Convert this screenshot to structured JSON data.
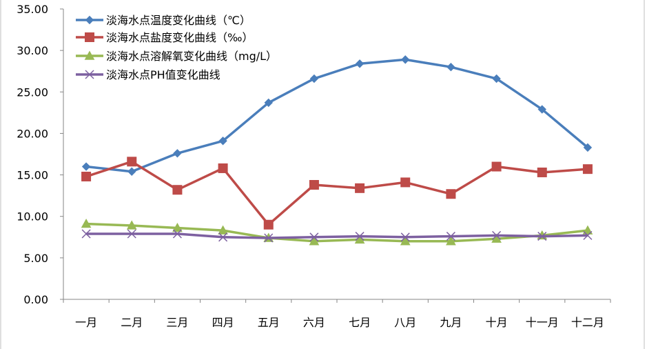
{
  "chart_data": {
    "type": "line",
    "categories": [
      "一月",
      "二月",
      "三月",
      "四月",
      "五月",
      "六月",
      "七月",
      "八月",
      "九月",
      "十月",
      "十一月",
      "十二月"
    ],
    "yticks": [
      "0.00",
      "5.00",
      "10.00",
      "15.00",
      "20.00",
      "25.00",
      "30.00",
      "35.00"
    ],
    "ylim": [
      0,
      35
    ],
    "grid": false,
    "legend_position": "top-left",
    "series": [
      {
        "name": "淡海水点温度变化曲线（℃）",
        "color": "#4a7ebb",
        "marker": "diamond",
        "values": [
          16.0,
          15.4,
          17.6,
          19.1,
          23.7,
          26.6,
          28.4,
          28.9,
          28.0,
          26.6,
          22.9,
          18.3
        ]
      },
      {
        "name": "淡海水点盐度变化曲线（‰）",
        "color": "#be4b48",
        "marker": "square",
        "values": [
          14.8,
          16.6,
          13.2,
          15.8,
          9.0,
          13.8,
          13.4,
          14.1,
          12.7,
          16.0,
          15.3,
          15.7
        ]
      },
      {
        "name": "淡海水点溶解氧变化曲线（mg/L）",
        "color": "#98b954",
        "marker": "triangle",
        "values": [
          9.1,
          8.9,
          8.6,
          8.3,
          7.4,
          7.0,
          7.2,
          7.0,
          7.0,
          7.3,
          7.7,
          8.3
        ]
      },
      {
        "name": "淡海水点PH值变化曲线",
        "color": "#7d60a0",
        "marker": "x",
        "values": [
          7.9,
          7.9,
          7.9,
          7.5,
          7.4,
          7.5,
          7.6,
          7.5,
          7.6,
          7.7,
          7.6,
          7.7
        ]
      }
    ]
  }
}
